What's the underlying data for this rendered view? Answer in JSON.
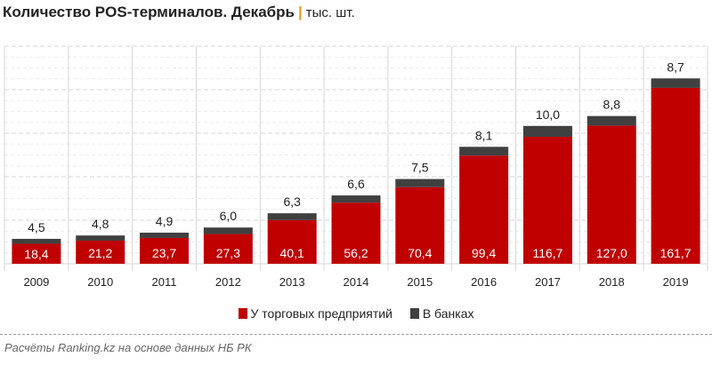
{
  "title": "Количество POS-терминалов. Декабрь",
  "unit": "тыс. шт.",
  "source": "Расчёты Ranking.kz на основе данных НБ РК",
  "chart_data": {
    "type": "stacked-bar",
    "categories": [
      "2009",
      "2010",
      "2011",
      "2012",
      "2013",
      "2014",
      "2015",
      "2016",
      "2017",
      "2018",
      "2019"
    ],
    "series": [
      {
        "name": "У торговых предприятий",
        "color": "#c00000",
        "values": [
          18.4,
          21.2,
          23.7,
          27.3,
          40.1,
          56.2,
          70.4,
          99.4,
          116.7,
          127.0,
          161.7
        ]
      },
      {
        "name": "В банках",
        "color": "#404040",
        "values": [
          4.5,
          4.8,
          4.9,
          6.0,
          6.3,
          6.6,
          7.5,
          8.1,
          10.0,
          8.8,
          8.7
        ]
      }
    ],
    "ylim": [
      0,
      200
    ],
    "grid": true,
    "legend": "bottom",
    "value_format": "comma-decimal"
  }
}
